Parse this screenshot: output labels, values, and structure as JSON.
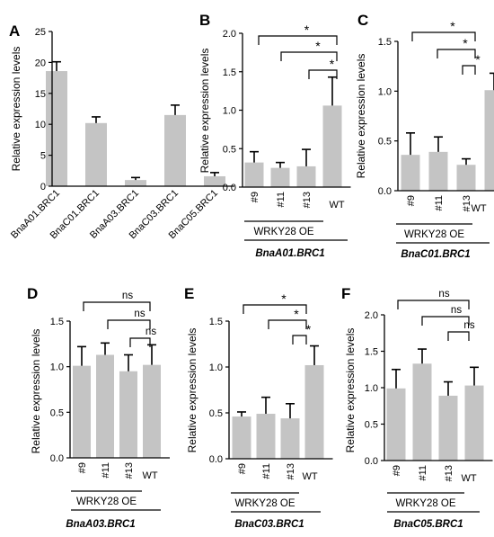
{
  "colors": {
    "bar": "#c4c4c4",
    "axis": "#000000",
    "text": "#000000"
  },
  "common": {
    "ylabel": "Relative expression levels",
    "group_label": "WRKY28 OE"
  },
  "chart_data": [
    {
      "panel": "A",
      "type": "bar",
      "title": "",
      "xlabel": "",
      "ylabel": "Relative expression levels",
      "ylim": [
        0,
        25
      ],
      "yticks": [
        "0",
        "5",
        "10",
        "15",
        "20",
        "25"
      ],
      "categories": [
        "BnaA01.BRC1",
        "BnaC01.BRC1",
        "BnaA03.BRC1",
        "BnaC03.BRC1",
        "BnaC05.BRC1"
      ],
      "values": [
        18.6,
        10.2,
        1.0,
        11.5,
        1.6
      ],
      "errors": [
        1.5,
        1.0,
        0.4,
        1.6,
        0.6
      ],
      "comparisons": [],
      "group_label": "",
      "gene": ""
    },
    {
      "panel": "B",
      "type": "bar",
      "ylabel": "Relative expression levels",
      "ylim": [
        0,
        2.0
      ],
      "yticks": [
        "0.0",
        "0.5",
        "1.0",
        "1.5",
        "2.0"
      ],
      "categories": [
        "#9",
        "#11",
        "#13",
        "WT"
      ],
      "values": [
        0.32,
        0.25,
        0.27,
        1.06
      ],
      "errors": [
        0.14,
        0.07,
        0.22,
        0.37
      ],
      "comparisons": [
        "*",
        "*",
        "*"
      ],
      "group_label": "WRKY28 OE",
      "gene": "BnaA01.BRC1"
    },
    {
      "panel": "C",
      "type": "bar",
      "ylabel": "Relative expression levels",
      "ylim": [
        0,
        1.5
      ],
      "yticks": [
        "0.0",
        "0.5",
        "1.0",
        "1.5"
      ],
      "categories": [
        "#9",
        "#11",
        "#13",
        "WT"
      ],
      "values": [
        0.36,
        0.39,
        0.26,
        1.01
      ],
      "errors": [
        0.22,
        0.15,
        0.06,
        0.17
      ],
      "comparisons": [
        "*",
        "*",
        "*"
      ],
      "group_label": "WRKY28 OE",
      "gene": "BnaC01.BRC1"
    },
    {
      "panel": "D",
      "type": "bar",
      "ylabel": "Relative expression levels",
      "ylim": [
        0,
        1.5
      ],
      "yticks": [
        "0.0",
        "0.5",
        "1.0",
        "1.5"
      ],
      "categories": [
        "#9",
        "#11",
        "#13",
        "WT"
      ],
      "values": [
        1.01,
        1.13,
        0.95,
        1.02
      ],
      "errors": [
        0.21,
        0.13,
        0.18,
        0.22
      ],
      "comparisons": [
        "ns",
        "ns",
        "ns"
      ],
      "group_label": "WRKY28 OE",
      "gene": "BnaA03.BRC1"
    },
    {
      "panel": "E",
      "type": "bar",
      "ylabel": "Relative expression levels",
      "ylim": [
        0,
        1.5
      ],
      "yticks": [
        "0.0",
        "0.5",
        "1.0",
        "1.5"
      ],
      "categories": [
        "#9",
        "#11",
        "#13",
        "WT"
      ],
      "values": [
        0.46,
        0.49,
        0.44,
        1.02
      ],
      "errors": [
        0.05,
        0.18,
        0.16,
        0.21
      ],
      "comparisons": [
        "*",
        "*",
        "*"
      ],
      "group_label": "WRKY28 OE",
      "gene": "BnaC03.BRC1"
    },
    {
      "panel": "F",
      "type": "bar",
      "ylabel": "Relative expression levels",
      "ylim": [
        0,
        2.0
      ],
      "yticks": [
        "0.0",
        "0.5",
        "1.0",
        "1.5",
        "2.0"
      ],
      "categories": [
        "#9",
        "#11",
        "#13",
        "WT"
      ],
      "values": [
        0.99,
        1.33,
        0.89,
        1.03
      ],
      "errors": [
        0.26,
        0.2,
        0.19,
        0.25
      ],
      "comparisons": [
        "ns",
        "ns",
        "ns"
      ],
      "group_label": "WRKY28 OE",
      "gene": "BnaC05.BRC1"
    }
  ]
}
